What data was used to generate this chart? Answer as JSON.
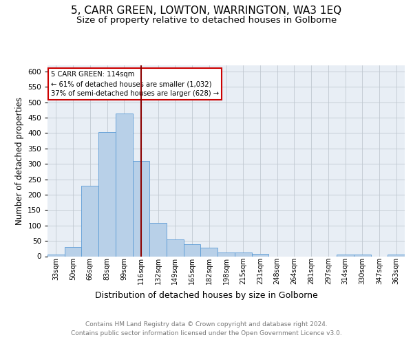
{
  "title": "5, CARR GREEN, LOWTON, WARRINGTON, WA3 1EQ",
  "subtitle": "Size of property relative to detached houses in Golborne",
  "xlabel": "Distribution of detached houses by size in Golborne",
  "ylabel": "Number of detached properties",
  "categories": [
    "33sqm",
    "50sqm",
    "66sqm",
    "83sqm",
    "99sqm",
    "116sqm",
    "132sqm",
    "149sqm",
    "165sqm",
    "182sqm",
    "198sqm",
    "215sqm",
    "231sqm",
    "248sqm",
    "264sqm",
    "281sqm",
    "297sqm",
    "314sqm",
    "330sqm",
    "347sqm",
    "363sqm"
  ],
  "values": [
    5,
    30,
    228,
    403,
    463,
    310,
    108,
    54,
    40,
    27,
    13,
    13,
    8,
    0,
    0,
    0,
    0,
    5,
    5,
    0,
    5
  ],
  "bar_color": "#b8d0e8",
  "bar_edge_color": "#5b9bd5",
  "vline_x": 5,
  "vline_color": "#8b0000",
  "annotation_text": "5 CARR GREEN: 114sqm\n← 61% of detached houses are smaller (1,032)\n37% of semi-detached houses are larger (628) →",
  "annotation_box_color": "#ffffff",
  "annotation_box_edge": "#cc0000",
  "ylim": [
    0,
    620
  ],
  "yticks": [
    0,
    50,
    100,
    150,
    200,
    250,
    300,
    350,
    400,
    450,
    500,
    550,
    600
  ],
  "background_color": "#e8eef5",
  "footer_text": "Contains HM Land Registry data © Crown copyright and database right 2024.\nContains public sector information licensed under the Open Government Licence v3.0.",
  "title_fontsize": 11,
  "subtitle_fontsize": 9.5,
  "xlabel_fontsize": 9,
  "ylabel_fontsize": 8.5,
  "footer_fontsize": 6.5,
  "tick_fontsize": 7,
  "ytick_fontsize": 7.5
}
